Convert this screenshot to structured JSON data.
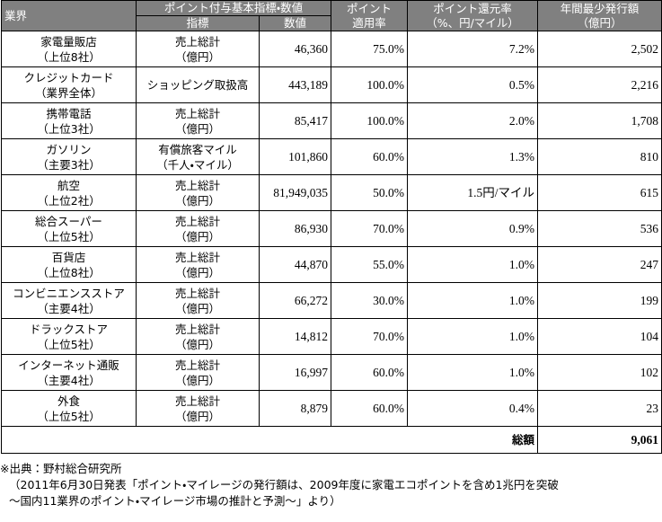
{
  "table": {
    "columns": {
      "industry": "業界",
      "basis": "ポイント付与基本指標・数値",
      "indicator": "指標",
      "value": "数値",
      "rate": [
        "ポイント",
        "適用率"
      ],
      "return": [
        "ポイント還元率",
        "（%、円/マイル）"
      ],
      "amount": [
        "年間最少発行額",
        "（億円）"
      ]
    },
    "rows": [
      {
        "industry": [
          "家電量販店",
          "（上位8社）"
        ],
        "indicator": [
          "売上総計",
          "（億円）"
        ],
        "value": "46,360",
        "rate": "75.0%",
        "return": "7.2%",
        "amount": "2,502"
      },
      {
        "industry": [
          "クレジットカード",
          "（業界全体）"
        ],
        "indicator": [
          "ショッピング取扱高"
        ],
        "value": "443,189",
        "rate": "100.0%",
        "return": "0.5%",
        "amount": "2,216"
      },
      {
        "industry": [
          "携帯電話",
          "（上位3社）"
        ],
        "indicator": [
          "売上総計",
          "（億円）"
        ],
        "value": "85,417",
        "rate": "100.0%",
        "return": "2.0%",
        "amount": "1,708"
      },
      {
        "industry": [
          "ガソリン",
          "（主要3社）"
        ],
        "indicator": [
          "有償旅客マイル",
          "（千人・マイル）"
        ],
        "value": "101,860",
        "rate": "60.0%",
        "return": "1.3%",
        "amount": "810"
      },
      {
        "industry": [
          "航空",
          "（上位2社）"
        ],
        "indicator": [
          "売上総計",
          "（億円）"
        ],
        "value": "81,949,035",
        "rate": "50.0%",
        "return": "1.5円/マイル",
        "amount": "615"
      },
      {
        "industry": [
          "総合スーパー",
          "（上位5社）"
        ],
        "indicator": [
          "売上総計",
          "（億円）"
        ],
        "value": "86,930",
        "rate": "70.0%",
        "return": "0.9%",
        "amount": "536"
      },
      {
        "industry": [
          "百貨店",
          "（上位8社）"
        ],
        "indicator": [
          "売上総計",
          "（億円）"
        ],
        "value": "44,870",
        "rate": "55.0%",
        "return": "1.0%",
        "amount": "247"
      },
      {
        "industry": [
          "コンビニエンスストア",
          "（主要4社）"
        ],
        "indicator": [
          "売上総計",
          "（億円）"
        ],
        "value": "66,272",
        "rate": "30.0%",
        "return": "1.0%",
        "amount": "199"
      },
      {
        "industry": [
          "ドラックストア",
          "（上位5社）"
        ],
        "indicator": [
          "売上総計",
          "（億円）"
        ],
        "value": "14,812",
        "rate": "70.0%",
        "return": "1.0%",
        "amount": "104"
      },
      {
        "industry": [
          "インターネット通販",
          "（主要4社）"
        ],
        "indicator": [
          "売上総計",
          "（億円）"
        ],
        "value": "16,997",
        "rate": "60.0%",
        "return": "1.0%",
        "amount": "102"
      },
      {
        "industry": [
          "外食",
          "（上位5社）"
        ],
        "indicator": [
          "売上総計",
          "（億円）"
        ],
        "value": "8,879",
        "rate": "60.0%",
        "return": "0.4%",
        "amount": "23"
      }
    ],
    "total": {
      "label": "総額",
      "value": "9,061"
    }
  },
  "notes": [
    "※出典：野村総合研究所",
    "（2011年6月30日発表「ポイント・マイレージの発行額は、2009年度に家電エコポイントを含め1兆円を突破",
    "～国内11業界のポイント・マイレージ市場の推計と予測～」より）"
  ]
}
